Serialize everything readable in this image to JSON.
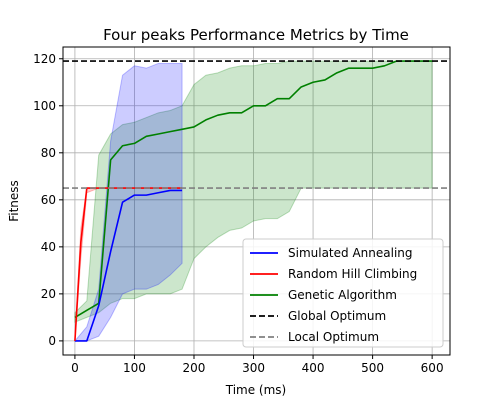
{
  "chart_data": {
    "type": "line",
    "title": "Four peaks Performance Metrics by Time",
    "xlabel": "Time (ms)",
    "ylabel": "Fitness",
    "xlim": [
      -20,
      630
    ],
    "ylim": [
      -6,
      125
    ],
    "xticks": [
      0,
      100,
      200,
      300,
      400,
      500,
      600
    ],
    "yticks": [
      0,
      20,
      40,
      60,
      80,
      100,
      120
    ],
    "grid": true,
    "legend_position": "lower-right",
    "series": [
      {
        "name": "Simulated Annealing",
        "color": "#0000ff",
        "x": [
          0,
          20,
          40,
          60,
          80,
          100,
          120,
          140,
          160,
          180
        ],
        "y": [
          0,
          0,
          15,
          38,
          59,
          62,
          62,
          63,
          64,
          64
        ],
        "band_upper": [
          0,
          6,
          22,
          85,
          113,
          117,
          116,
          118,
          118,
          118
        ],
        "band_lower": [
          0,
          0,
          2,
          10,
          20,
          22,
          22,
          24,
          28,
          33
        ]
      },
      {
        "name": "Random Hill Climbing",
        "color": "#ff0000",
        "x": [
          0,
          10,
          20,
          40,
          60,
          80,
          100,
          120,
          140,
          160,
          180
        ],
        "y": [
          0,
          42,
          65,
          65,
          65,
          65,
          65,
          65,
          65,
          65,
          65
        ],
        "band_upper": [
          0,
          48,
          65,
          65,
          65,
          65,
          65,
          65,
          65,
          65,
          65
        ],
        "band_lower": [
          0,
          35,
          63,
          65,
          65,
          65,
          65,
          65,
          65,
          65,
          65
        ]
      },
      {
        "name": "Genetic Algorithm",
        "color": "#008000",
        "x": [
          0,
          20,
          40,
          60,
          80,
          100,
          120,
          140,
          160,
          180,
          200,
          220,
          240,
          260,
          280,
          300,
          320,
          340,
          360,
          380,
          400,
          420,
          440,
          460,
          480,
          500,
          520,
          540,
          560,
          580,
          600
        ],
        "y": [
          10,
          13,
          16,
          77,
          83,
          84,
          87,
          88,
          89,
          90,
          91,
          94,
          96,
          97,
          97,
          100,
          100,
          103,
          103,
          108,
          110,
          111,
          114,
          116,
          116,
          116,
          117,
          119,
          119,
          119,
          119
        ],
        "band_upper": [
          12,
          17,
          79,
          88,
          92,
          93,
          95,
          97,
          98,
          100,
          109,
          113,
          114,
          116,
          117,
          117,
          118,
          118,
          119,
          119,
          119,
          119,
          119,
          119,
          119,
          119,
          119,
          119,
          119,
          119,
          119
        ],
        "band_lower": [
          8,
          10,
          12,
          16,
          18,
          18,
          20,
          20,
          20,
          22,
          35,
          40,
          44,
          47,
          48,
          51,
          52,
          52,
          55,
          65,
          65,
          65,
          65,
          65,
          65,
          65,
          65,
          65,
          65,
          65,
          65
        ]
      }
    ],
    "reference_lines": [
      {
        "name": "Global Optimum",
        "y": 119,
        "color": "#000000",
        "style": "dashed"
      },
      {
        "name": "Local Optimum",
        "y": 65,
        "color": "#808080",
        "style": "dashed"
      }
    ]
  }
}
